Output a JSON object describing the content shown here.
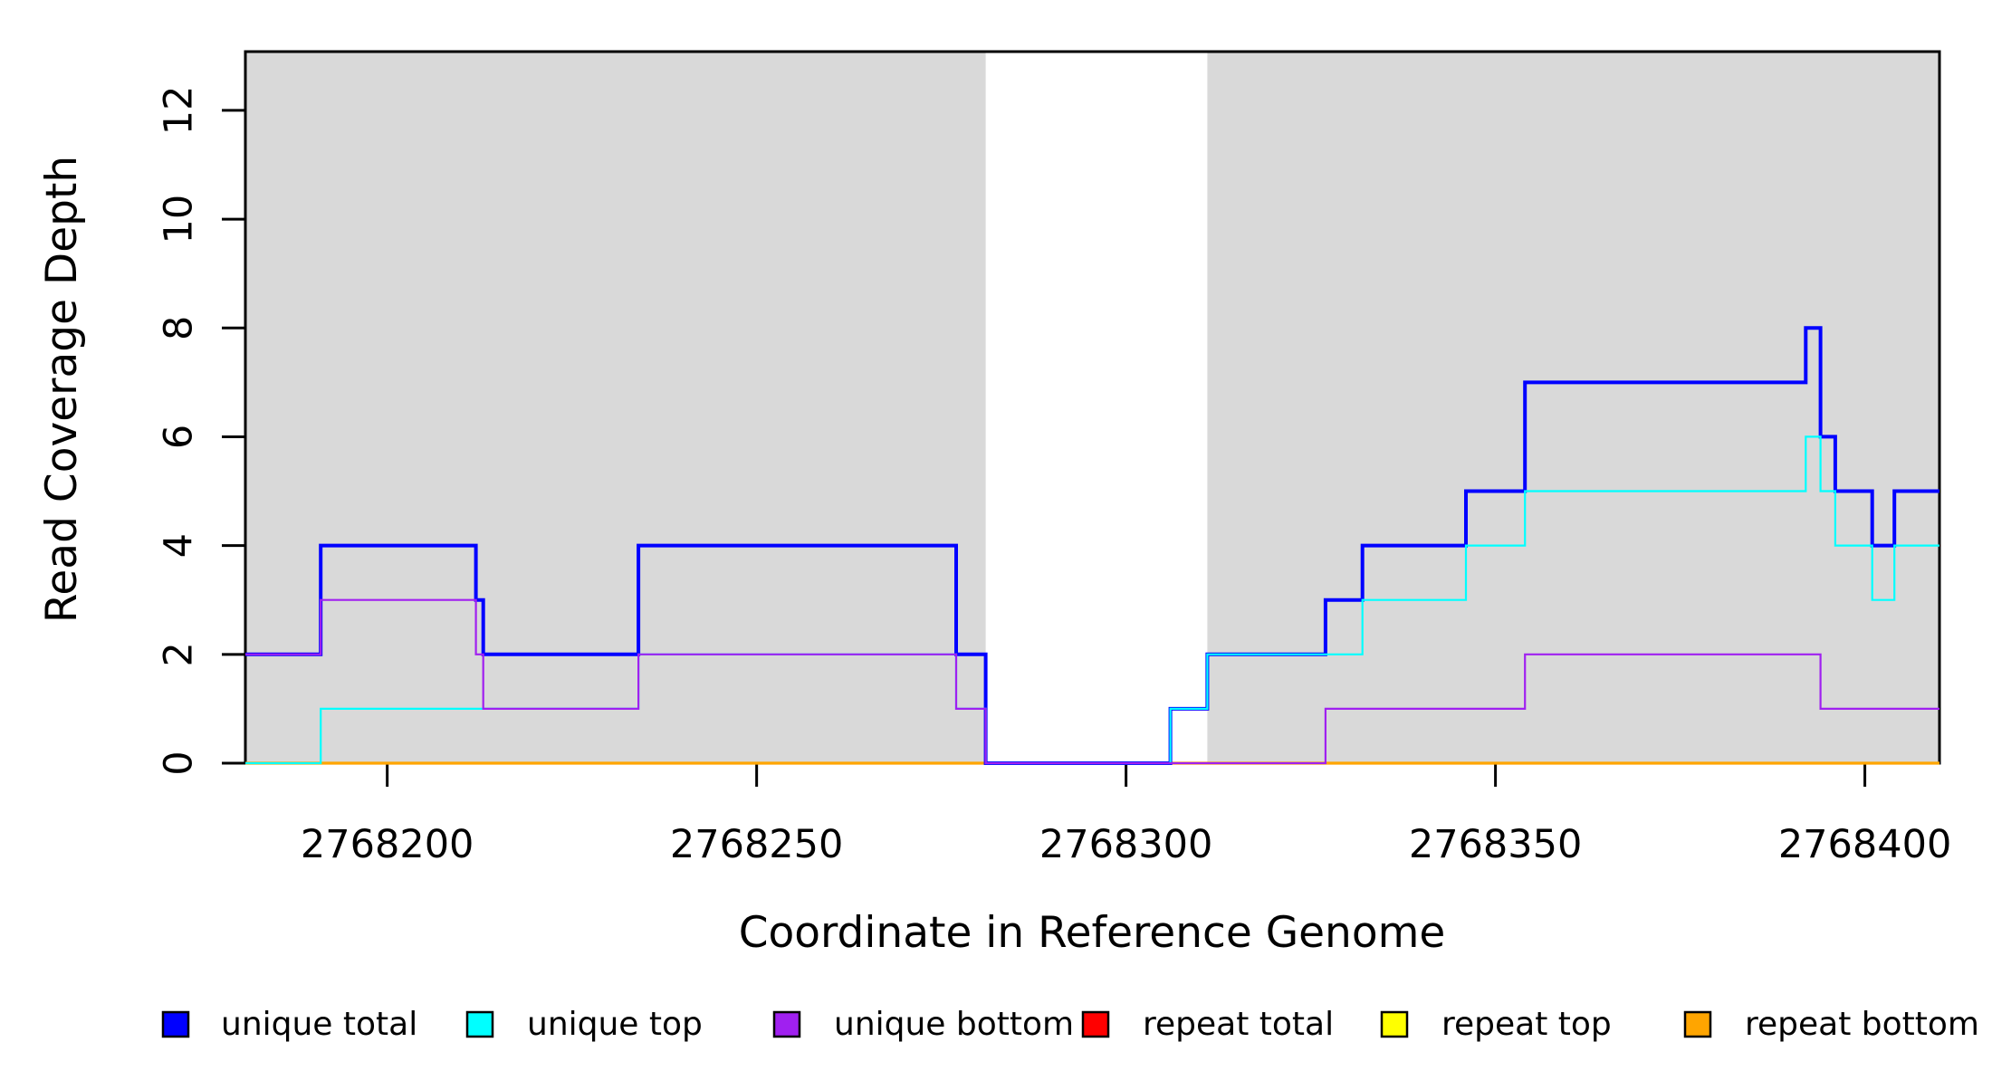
{
  "chart_data": {
    "type": "line",
    "subtype": "step",
    "title": "",
    "xlabel": "Coordinate in Reference Genome",
    "ylabel": "Read Coverage Depth",
    "xlim": [
      2768180.8,
      2768410.1
    ],
    "ylim": [
      0,
      13.08
    ],
    "x_ticks": [
      2768200,
      2768250,
      2768300,
      2768350,
      2768400
    ],
    "y_ticks": [
      0,
      2,
      4,
      6,
      8,
      10,
      12
    ],
    "grid": "off",
    "legend_position": "bottom",
    "plot_border_color": "#000000",
    "background_shading": {
      "color": "#d9d9d9",
      "regions": [
        [
          2768180.8,
          2768281
        ],
        [
          2768311,
          2768410.1
        ]
      ]
    },
    "series": [
      {
        "name": "unique-total",
        "label": "unique total",
        "color": "#0000ff",
        "line_width": 4,
        "points": [
          [
            2768180.8,
            2
          ],
          [
            2768191,
            4
          ],
          [
            2768212,
            3
          ],
          [
            2768213,
            2
          ],
          [
            2768234,
            4
          ],
          [
            2768277,
            2
          ],
          [
            2768281,
            0
          ],
          [
            2768306,
            1
          ],
          [
            2768311,
            2
          ],
          [
            2768327,
            3
          ],
          [
            2768332,
            4
          ],
          [
            2768346,
            5
          ],
          [
            2768354,
            7
          ],
          [
            2768392,
            8
          ],
          [
            2768394,
            6
          ],
          [
            2768396,
            5
          ],
          [
            2768401,
            4
          ],
          [
            2768404,
            5
          ],
          [
            2768410.1,
            5
          ]
        ]
      },
      {
        "name": "unique-top",
        "label": "unique top",
        "color": "#00ffff",
        "line_width": 2.2,
        "points": [
          [
            2768180.8,
            0
          ],
          [
            2768191,
            1
          ],
          [
            2768234,
            2
          ],
          [
            2768277,
            1
          ],
          [
            2768281,
            0
          ],
          [
            2768306,
            1
          ],
          [
            2768311,
            2
          ],
          [
            2768332,
            3
          ],
          [
            2768346,
            4
          ],
          [
            2768354,
            5
          ],
          [
            2768392,
            6
          ],
          [
            2768394,
            5
          ],
          [
            2768396,
            4
          ],
          [
            2768401,
            3
          ],
          [
            2768404,
            4
          ],
          [
            2768410.1,
            4
          ]
        ]
      },
      {
        "name": "unique-bottom",
        "label": "unique bottom",
        "color": "#a020f0",
        "line_width": 2.2,
        "points": [
          [
            2768180.8,
            2
          ],
          [
            2768191,
            3
          ],
          [
            2768212,
            2
          ],
          [
            2768213,
            1
          ],
          [
            2768234,
            2
          ],
          [
            2768277,
            1
          ],
          [
            2768281,
            0
          ],
          [
            2768327,
            1
          ],
          [
            2768354,
            2
          ],
          [
            2768394,
            1
          ],
          [
            2768410.1,
            1
          ]
        ]
      },
      {
        "name": "repeat-total",
        "label": "repeat total",
        "color": "#ff0000",
        "line_width": 3,
        "points": [
          [
            2768180.8,
            0
          ],
          [
            2768410.1,
            0
          ]
        ]
      },
      {
        "name": "repeat-top",
        "label": "repeat top",
        "color": "#ffff00",
        "line_width": 3,
        "points": [
          [
            2768180.8,
            0
          ],
          [
            2768410.1,
            0
          ]
        ]
      },
      {
        "name": "repeat-bottom",
        "label": "repeat bottom",
        "color": "#ffa500",
        "line_width": 3.2,
        "points": [
          [
            2768180.8,
            0
          ],
          [
            2768410.1,
            0
          ]
        ]
      }
    ],
    "draw_order": [
      3,
      4,
      5,
      0,
      1,
      2
    ]
  }
}
